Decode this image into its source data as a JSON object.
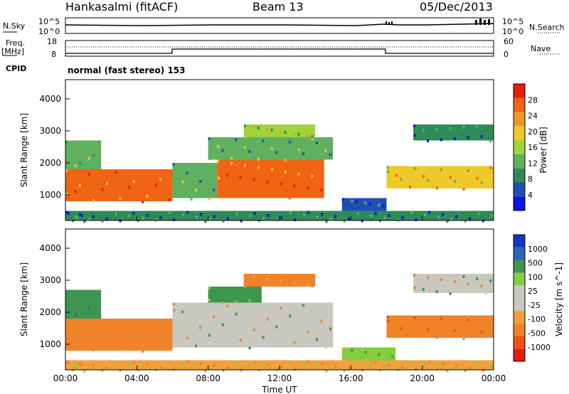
{
  "header": {
    "station": "Hankasalmi (fitACF)",
    "beam": "Beam 13",
    "date": "05/Dec/2013"
  },
  "left_labels": {
    "nsky": "N.Sky",
    "freq": "Freq.",
    "mhz": "[MHz]",
    "cpid": "CPID",
    "nsky_top": "10^5",
    "nsky_bottom": "10^0",
    "freq_top": "18",
    "freq_bottom": "8"
  },
  "right_labels": {
    "nsearch": "N.Search",
    "nsearch_top": "10^5",
    "nsearch_bottom": "10^0",
    "nave": "Nave",
    "nave_top": "60",
    "nave_bottom": "0"
  },
  "cpid_text": "normal (fast stereo) 153",
  "colors": {
    "power": [
      "#0a14e6",
      "#1e50b4",
      "#2e8b57",
      "#5fb05f",
      "#a0d23c",
      "#f0c828",
      "#f09628",
      "#f06414",
      "#e81e0a"
    ],
    "velocity": [
      "#e81e0a",
      "#f05014",
      "#f08228",
      "#f0a03c",
      "#c8c8c0",
      "#c8c8c0",
      "#7ed040",
      "#3c9650",
      "#2c64b4",
      "#1432c8"
    ]
  },
  "chart_data": [
    {
      "type": "heatmap",
      "title": "",
      "quantity": "Power",
      "xlabel": "",
      "ylabel": "Slant Range [km]",
      "x_tick_labels": [
        "00:00",
        "04:00",
        "08:00",
        "12:00",
        "16:00",
        "20:00",
        "00:00"
      ],
      "x_ticks_hours": [
        0,
        4,
        8,
        12,
        16,
        20,
        24
      ],
      "ylim": [
        200,
        4600
      ],
      "y_ticks": [
        1000,
        2000,
        3000,
        4000
      ],
      "y_tick_labels": [
        "1000",
        "2000",
        "3000",
        "4000"
      ],
      "colorbar_label": "Power [dB]",
      "colorbar_range": [
        0,
        32
      ],
      "colorbar_ticks": [
        "4",
        "8",
        "12",
        "16",
        "20",
        "24",
        "28"
      ],
      "regions": [
        {
          "t0": 0.0,
          "t1": 6.0,
          "r0": 800,
          "r1": 1800,
          "level": 26
        },
        {
          "t0": 0.0,
          "t1": 2.0,
          "r0": 1800,
          "r1": 2700,
          "level": 14
        },
        {
          "t0": 6.0,
          "t1": 8.5,
          "r0": 900,
          "r1": 2000,
          "level": 12
        },
        {
          "t0": 8.5,
          "t1": 14.5,
          "r0": 900,
          "r1": 2100,
          "level": 25
        },
        {
          "t0": 8.0,
          "t1": 15.0,
          "r0": 2100,
          "r1": 2800,
          "level": 12
        },
        {
          "t0": 10.0,
          "t1": 14.0,
          "r0": 2800,
          "r1": 3200,
          "level": 16
        },
        {
          "t0": 15.5,
          "t1": 18.0,
          "r0": 500,
          "r1": 900,
          "level": 6
        },
        {
          "t0": 19.5,
          "t1": 24.0,
          "r0": 2700,
          "r1": 3200,
          "level": 8
        },
        {
          "t0": 18.0,
          "t1": 24.0,
          "r0": 1200,
          "r1": 1900,
          "level": 20
        },
        {
          "t0": 0.0,
          "t1": 24.0,
          "r0": 200,
          "r1": 500,
          "level": 8
        }
      ]
    },
    {
      "type": "heatmap",
      "title": "",
      "quantity": "Velocity",
      "xlabel": "Time UT",
      "ylabel": "Slant Range [km]",
      "x_tick_labels": [
        "00:00",
        "04:00",
        "08:00",
        "12:00",
        "16:00",
        "20:00",
        "00:00"
      ],
      "x_ticks_hours": [
        0,
        4,
        8,
        12,
        16,
        20,
        24
      ],
      "ylim": [
        200,
        4600
      ],
      "y_ticks": [
        1000,
        2000,
        3000,
        4000
      ],
      "y_tick_labels": [
        "1000",
        "2000",
        "3000",
        "4000"
      ],
      "colorbar_label": "Velocity [m s^-1]",
      "colorbar_ticks": [
        "-1000",
        "-500",
        "-100",
        "-25",
        "25",
        "100",
        "500",
        "1000"
      ],
      "regions": [
        {
          "t0": 0.0,
          "t1": 6.0,
          "r0": 800,
          "r1": 1800,
          "level": -300
        },
        {
          "t0": 0.0,
          "t1": 2.0,
          "r0": 1800,
          "r1": 2700,
          "level": 400
        },
        {
          "t0": 6.0,
          "t1": 15.0,
          "r0": 900,
          "r1": 2300,
          "level": 0
        },
        {
          "t0": 8.0,
          "t1": 11.0,
          "r0": 2300,
          "r1": 2800,
          "level": 200
        },
        {
          "t0": 10.0,
          "t1": 14.0,
          "r0": 2800,
          "r1": 3200,
          "level": -200
        },
        {
          "t0": 15.5,
          "t1": 18.5,
          "r0": 500,
          "r1": 900,
          "level": 80
        },
        {
          "t0": 19.5,
          "t1": 24.0,
          "r0": 2600,
          "r1": 3200,
          "level": 0
        },
        {
          "t0": 18.0,
          "t1": 24.0,
          "r0": 1200,
          "r1": 1900,
          "level": -400
        },
        {
          "t0": 0.0,
          "t1": 24.0,
          "r0": 200,
          "r1": 500,
          "level": -60
        }
      ]
    }
  ]
}
